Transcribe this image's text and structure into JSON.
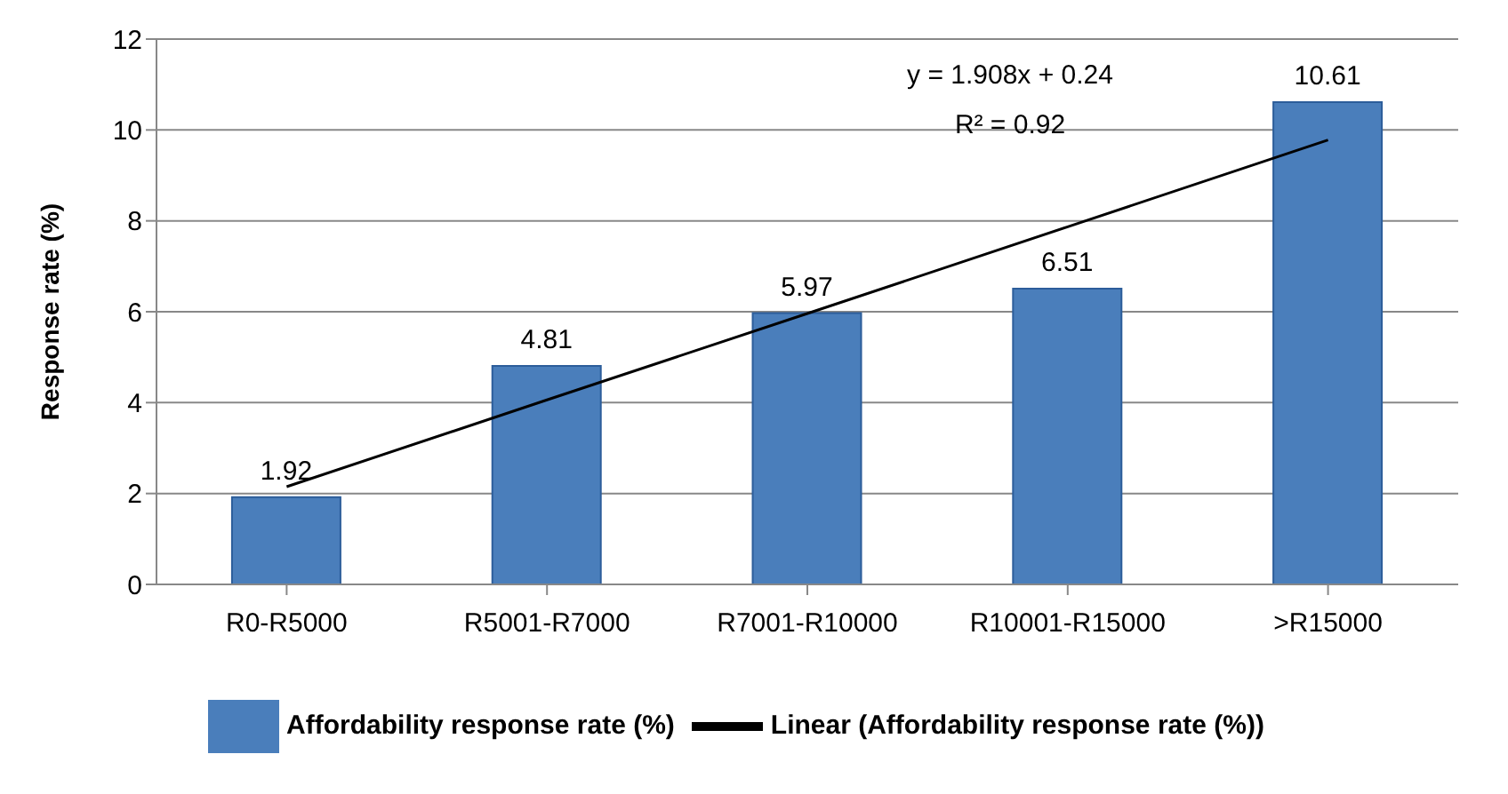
{
  "chart_data": {
    "type": "bar",
    "ylabel": "Response rate (%)",
    "categories": [
      "R0-R5000",
      "R5001-R7000",
      "R7001-R10000",
      "R10001-R15000",
      ">R15000"
    ],
    "series": [
      {
        "name": "Affordability response rate (%)",
        "color": "#4a7ebb",
        "values": [
          1.92,
          4.81,
          5.97,
          6.51,
          10.61
        ],
        "value_labels": [
          "1.92",
          "4.81",
          "5.97",
          "6.51",
          "10.61"
        ]
      },
      {
        "name": "Linear (Affordability response rate (%))",
        "type": "line",
        "color": "#000000",
        "values": [
          2.15,
          4.06,
          5.96,
          7.87,
          9.78
        ]
      }
    ],
    "ylim": [
      0,
      12
    ],
    "yticks": [
      0,
      2,
      4,
      6,
      8,
      10,
      12
    ],
    "grid": "y",
    "legend": "bottom",
    "marker": "none",
    "annotations": [
      "y = 1.908x + 0.24",
      "R² = 0.92"
    ]
  }
}
